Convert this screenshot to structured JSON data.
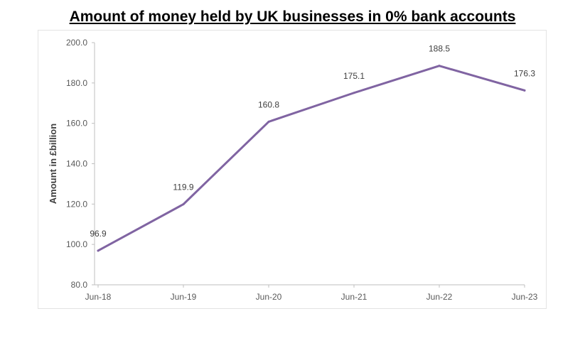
{
  "chart_data": {
    "type": "line",
    "title": "Amount of money held by UK businesses in 0% bank accounts",
    "xlabel": "",
    "ylabel": "Amount in £billion",
    "categories": [
      "Jun-18",
      "Jun-19",
      "Jun-20",
      "Jun-21",
      "Jun-22",
      "Jun-23"
    ],
    "series": [
      {
        "values": [
          96.9,
          119.9,
          160.8,
          175.1,
          188.5,
          176.3
        ],
        "labels": [
          "96.9",
          "119.9",
          "160.8",
          "175.1",
          "188.5",
          "176.3"
        ],
        "color": "#8064a2"
      }
    ],
    "ylim": [
      80.0,
      200.0
    ],
    "yticks": [
      80.0,
      100.0,
      120.0,
      140.0,
      160.0,
      180.0,
      200.0
    ],
    "ytick_labels": [
      "80.0",
      "100.0",
      "120.0",
      "140.0",
      "160.0",
      "180.0",
      "200.0"
    ],
    "grid": false,
    "legend": "none"
  }
}
